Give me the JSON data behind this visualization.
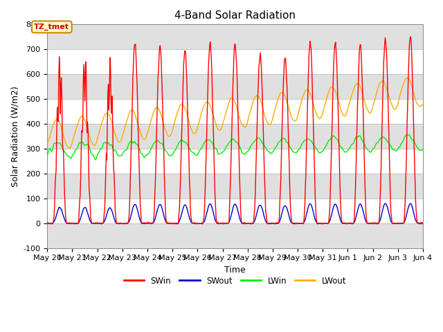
{
  "title": "4-Band Solar Radiation",
  "xlabel": "Time",
  "ylabel": "Solar Radiation (W/m2)",
  "ylim": [
    -100,
    830
  ],
  "ylim_display": [
    -100,
    800
  ],
  "xtick_labels": [
    "May 20",
    "May 21",
    "May 22",
    "May 23",
    "May 24",
    "May 25",
    "May 26",
    "May 27",
    "May 28",
    "May 29",
    "May 30",
    "May 31",
    "Jun 1",
    "Jun 2",
    "Jun 3",
    "Jun 4"
  ],
  "legend_entries": [
    "SWin",
    "SWout",
    "LWin",
    "LWout"
  ],
  "line_colors": [
    "#ff0000",
    "#0000cc",
    "#00ee00",
    "#ffaa00"
  ],
  "annotation_text": "TZ_tmet",
  "annotation_box_color": "#ffffcc",
  "annotation_border_color": "#cc8800",
  "background_band_color": "#e0e0e0",
  "title_fontsize": 11,
  "label_fontsize": 9,
  "tick_fontsize": 8
}
